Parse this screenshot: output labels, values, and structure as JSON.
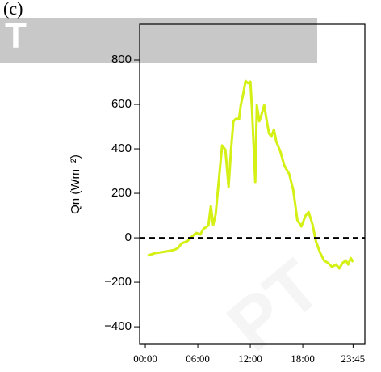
{
  "panel_label": "(c)",
  "watermark_texts": [
    "T",
    "PT"
  ],
  "chart_data": {
    "type": "line",
    "ylabel": "Qn (Wm⁻²)",
    "x": [
      0.28,
      1.11,
      2.31,
      3.23,
      3.7,
      4.16,
      4.81,
      5.36,
      5.82,
      6.28,
      6.65,
      7.21,
      7.49,
      7.76,
      8.04,
      8.41,
      8.78,
      9.15,
      9.52,
      9.8,
      10.07,
      10.35,
      10.72,
      10.91,
      11.18,
      11.46,
      11.74,
      12.01,
      12.2,
      12.57,
      12.75,
      13.03,
      13.22,
      13.59,
      13.86,
      14.14,
      14.42,
      14.7,
      14.97,
      15.43,
      15.9,
      16.45,
      16.91,
      17.38,
      17.84,
      18.3,
      18.67,
      19.13,
      19.5,
      19.96,
      20.43,
      20.89,
      21.35,
      21.81,
      22.18,
      22.55,
      22.92,
      23.2,
      23.48,
      23.75
    ],
    "series": [
      {
        "name": "Qn",
        "color": "#d4f014",
        "values": [
          -80,
          -69,
          -62,
          -55,
          -47,
          -25,
          -15,
          7,
          22,
          15,
          40,
          55,
          142,
          58,
          105,
          262,
          415,
          396,
          229,
          396,
          524,
          535,
          535,
          596,
          644,
          705,
          695,
          702,
          578,
          251,
          596,
          524,
          545,
          596,
          531,
          469,
          455,
          487,
          433,
          389,
          324,
          287,
          215,
          80,
          51,
          98,
          116,
          58,
          -15,
          -65,
          -102,
          -113,
          -131,
          -120,
          -138,
          -113,
          -102,
          -120,
          -91,
          -109
        ]
      }
    ],
    "xlim": [
      -0.65,
      25.1
    ],
    "xticks": [
      {
        "value": 0,
        "label": "00:00"
      },
      {
        "value": 6,
        "label": "06:00"
      },
      {
        "value": 12,
        "label": "12:00"
      },
      {
        "value": 18,
        "label": "18:00"
      },
      {
        "value": 23.75,
        "label": "23:45"
      }
    ],
    "ylim": [
      -476,
      960
    ],
    "yticks": [
      {
        "value": -400,
        "label": "−400"
      },
      {
        "value": -200,
        "label": "−200"
      },
      0,
      200,
      400,
      600,
      800
    ],
    "hline": 0,
    "grid": false
  }
}
